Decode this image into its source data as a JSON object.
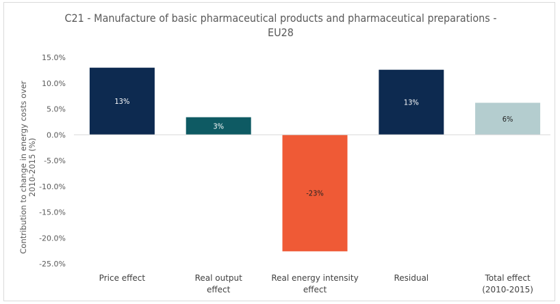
{
  "chart_data": {
    "type": "bar",
    "title_line1": "C21 - Manufacture of basic pharmaceutical products and pharmaceutical preparations -",
    "title_line2": "EU28",
    "ylabel_line1": "Contribution to change in energy costs over",
    "ylabel_line2": "2010-2015 (%)",
    "xlabel": "",
    "ylim": [
      -25,
      15
    ],
    "yticks": [
      15,
      10,
      5,
      0,
      -5,
      -10,
      -15,
      -20,
      -25
    ],
    "ytick_labels": [
      "15.0%",
      "10.0%",
      "5.0%",
      "0.0%",
      "-5.0%",
      "-10.0%",
      "-15.0%",
      "-20.0%",
      "-25.0%"
    ],
    "grid": false,
    "categories": [
      [
        "Price effect"
      ],
      [
        "Real output",
        "effect"
      ],
      [
        "Real energy intensity",
        "effect"
      ],
      [
        "Residual"
      ],
      [
        "Total effect",
        "(2010-2015)"
      ]
    ],
    "values": [
      13,
      3.4,
      -22.6,
      12.6,
      6.2
    ],
    "data_labels": [
      "13%",
      "3%",
      "-23%",
      "13%",
      "6%"
    ],
    "colors": [
      "#0d2a50",
      "#0e5a63",
      "#ef5a36",
      "#0d2a50",
      "#b4cdcf"
    ],
    "label_colors": [
      "#ffffff",
      "#ffffff",
      "#222222",
      "#ffffff",
      "#222222"
    ]
  }
}
